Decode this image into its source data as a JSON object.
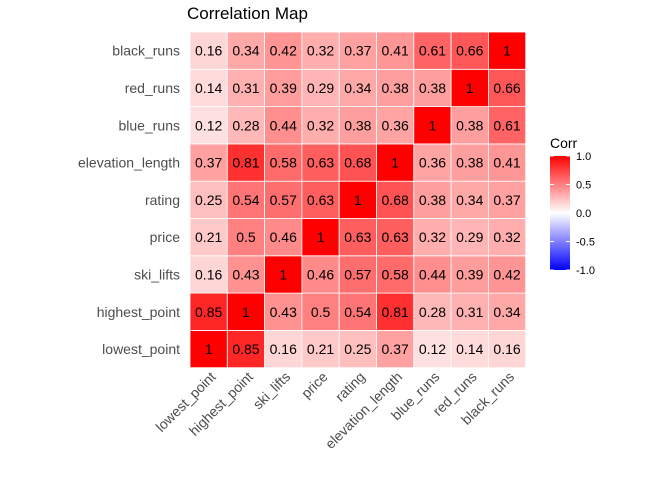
{
  "chart_data": {
    "type": "heatmap",
    "title": "Correlation Map",
    "x_categories": [
      "lowest_point",
      "highest_point",
      "ski_lifts",
      "price",
      "rating",
      "elevation_length",
      "blue_runs",
      "red_runs",
      "black_runs"
    ],
    "y_categories": [
      "lowest_point",
      "highest_point",
      "ski_lifts",
      "price",
      "rating",
      "elevation_length",
      "blue_runs",
      "red_runs",
      "black_runs"
    ],
    "values": [
      [
        1,
        0.85,
        0.16,
        0.21,
        0.25,
        0.37,
        0.12,
        0.14,
        0.16
      ],
      [
        0.85,
        1,
        0.43,
        0.5,
        0.54,
        0.81,
        0.28,
        0.31,
        0.34
      ],
      [
        0.16,
        0.43,
        1,
        0.46,
        0.57,
        0.58,
        0.44,
        0.39,
        0.42
      ],
      [
        0.21,
        0.5,
        0.46,
        1,
        0.63,
        0.63,
        0.32,
        0.29,
        0.32
      ],
      [
        0.25,
        0.54,
        0.57,
        0.63,
        1,
        0.68,
        0.38,
        0.34,
        0.37
      ],
      [
        0.37,
        0.81,
        0.58,
        0.63,
        0.68,
        1,
        0.36,
        0.38,
        0.41
      ],
      [
        0.12,
        0.28,
        0.44,
        0.32,
        0.38,
        0.36,
        1,
        0.38,
        0.61
      ],
      [
        0.14,
        0.31,
        0.39,
        0.29,
        0.34,
        0.38,
        0.38,
        1,
        0.66
      ],
      [
        0.16,
        0.34,
        0.42,
        0.32,
        0.37,
        0.41,
        0.61,
        0.66,
        1
      ]
    ],
    "color_scale": {
      "low": "#0000ff",
      "mid": "#ffffff",
      "high": "#ff0000",
      "limits": [
        -1,
        1
      ]
    },
    "legend": {
      "title": "Corr",
      "ticks": [
        "1.0",
        "0.5",
        "0.0",
        "-0.5",
        "-1.0"
      ],
      "position": "right"
    },
    "cell_border_color": "#ffffff",
    "grid": false
  }
}
